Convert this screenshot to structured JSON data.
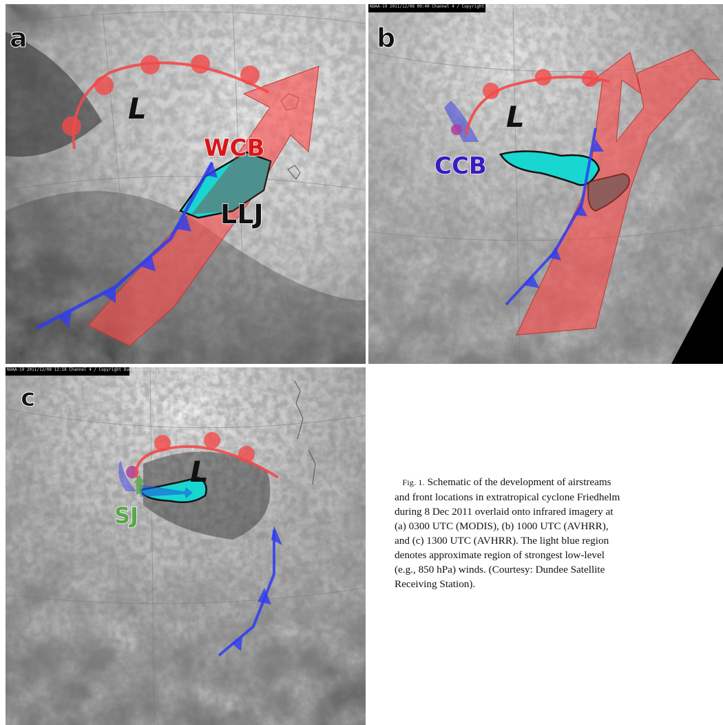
{
  "panels": {
    "a": {
      "letter": "a",
      "low": "L",
      "labels": {
        "wcb": "WCB",
        "llj": "LLJ"
      }
    },
    "b": {
      "letter": "b",
      "low": "L",
      "labels": {
        "ccb": "CCB"
      },
      "header": "NOAA-19 2011/12/08 09:40 Channel 4 / Copyright Dundee Satellite Receiving Station"
    },
    "c": {
      "letter": "c",
      "low": "L",
      "labels": {
        "sj": "SJ"
      },
      "header": "NOAA-19 2011/12/08 12:18 Channel 4 / Copyright Dundee Satellite Receiving Station"
    }
  },
  "caption": {
    "fig_label": "Fig. 1.",
    "lines": [
      "Schematic of the development of airstreams",
      "and front locations in extratropical cyclone Friedhelm",
      "during 8 Dec 2011 overlaid onto infrared imagery at",
      "(a) 0300 UTC (MODIS), (b) 1000 UTC (AVHRR),",
      "and (c) 1300 UTC (AVHRR). The light blue region",
      "denotes approximate region of strongest low-level",
      "(e.g., 850 hPa) winds. (Courtesy: Dundee Satellite",
      "Receiving Station)."
    ]
  },
  "colors": {
    "warm_front": "#f24a4a",
    "cold_front": "#2f3cf0",
    "wcb_arrow": "#ff4c4c",
    "llj_region": "#18d6d0",
    "wcb_label": "#d81818",
    "ccb_label": "#3a1cc0",
    "sj_label": "#5aa64a"
  }
}
